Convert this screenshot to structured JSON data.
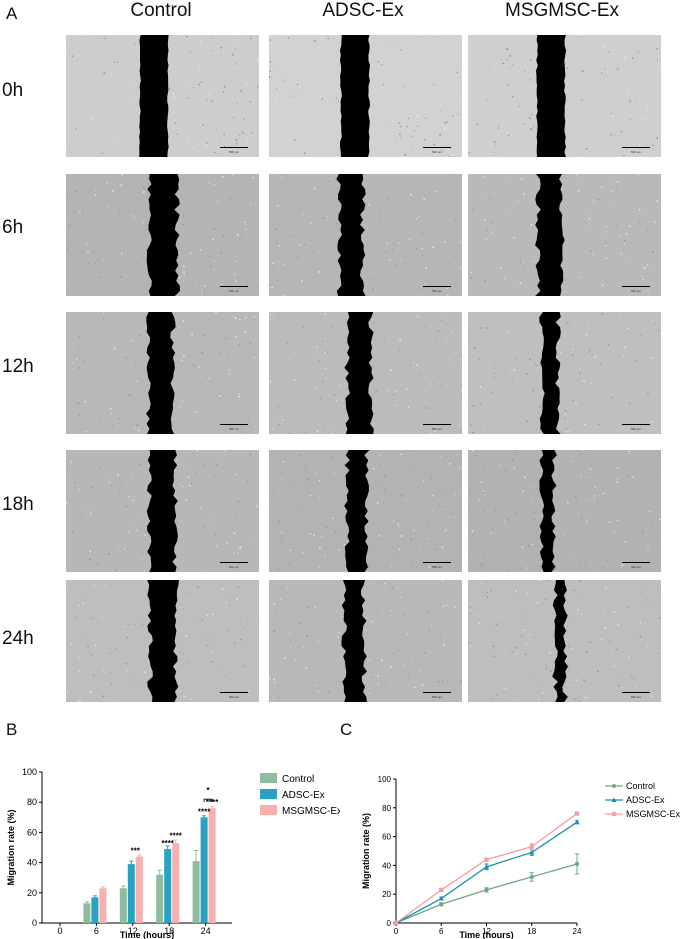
{
  "panel_labels": {
    "a": "A",
    "b": "B",
    "c": "C"
  },
  "columns": [
    "Control",
    "ADSC-Ex",
    "MSGMSC-Ex"
  ],
  "rows": [
    "0h",
    "6h",
    "12h",
    "18h",
    "24h"
  ],
  "scale_bar_label": "500 μm",
  "colors": {
    "Control": "#8dbc9f",
    "ADSC-Ex": "#2aa1c0",
    "MSGMSC-Ex": "#f7b0ae",
    "line_Control": "#6fa987",
    "line_ADSC-Ex": "#1e8fb0",
    "line_MSGMSC-Ex": "#f3a0a0"
  },
  "chart_data": [
    {
      "type": "bar",
      "panel": "B",
      "xlabel": "Time (hours)",
      "ylabel": "Migration rate (%)",
      "ylim": [
        0,
        100
      ],
      "yticks": [
        0,
        20,
        40,
        60,
        80,
        100
      ],
      "categories": [
        "0",
        "6",
        "12",
        "18",
        "24"
      ],
      "series": [
        {
          "name": "Control",
          "values": [
            0,
            13,
            23,
            32,
            41
          ],
          "errors": [
            0,
            1,
            1.5,
            3,
            7
          ]
        },
        {
          "name": "ADSC-Ex",
          "values": [
            0,
            17,
            39,
            49,
            70
          ],
          "errors": [
            0,
            1,
            2,
            2,
            1
          ]
        },
        {
          "name": "MSGMSC-Ex",
          "values": [
            0,
            23,
            44,
            53,
            76
          ],
          "errors": [
            0,
            1,
            1,
            2,
            1
          ]
        }
      ],
      "annotations": [
        {
          "category": "12",
          "text": "***",
          "value": 46
        },
        {
          "category": "18",
          "text": "****",
          "series": "ADSC-Ex",
          "value": 51
        },
        {
          "category": "18",
          "text": "****",
          "series": "MSGMSC-Ex",
          "value": 56
        },
        {
          "category": "24",
          "text": "****",
          "series": "ADSC-Ex",
          "value": 72
        },
        {
          "category": "24",
          "text": "****",
          "series": "MSGMSC-Ex",
          "value": 78
        },
        {
          "category": "24",
          "text": "*",
          "bracket": [
            "ADSC-Ex",
            "MSGMSC-Ex"
          ],
          "value": 86
        }
      ],
      "legend_position": "right",
      "grid": false
    },
    {
      "type": "line",
      "panel": "C",
      "xlabel": "Time (hours)",
      "ylabel": "Migration rate (%)",
      "ylim": [
        0,
        100
      ],
      "xlim": [
        0,
        24
      ],
      "yticks": [
        0,
        20,
        40,
        60,
        80,
        100
      ],
      "xticks": [
        0,
        6,
        12,
        18,
        24
      ],
      "x": [
        0,
        6,
        12,
        18,
        24
      ],
      "series": [
        {
          "name": "Control",
          "values": [
            0,
            13,
            23,
            32,
            41
          ],
          "errors": [
            0,
            1,
            1.5,
            3,
            7
          ],
          "marker": "circle"
        },
        {
          "name": "ADSC-Ex",
          "values": [
            0,
            17,
            39,
            49,
            70
          ],
          "errors": [
            0,
            1,
            2,
            2,
            1
          ],
          "marker": "triangle"
        },
        {
          "name": "MSGMSC-Ex",
          "values": [
            0,
            23,
            44,
            53,
            76
          ],
          "errors": [
            0,
            1,
            1,
            2,
            1
          ],
          "marker": "square"
        }
      ],
      "legend_position": "right",
      "grid": false
    }
  ]
}
